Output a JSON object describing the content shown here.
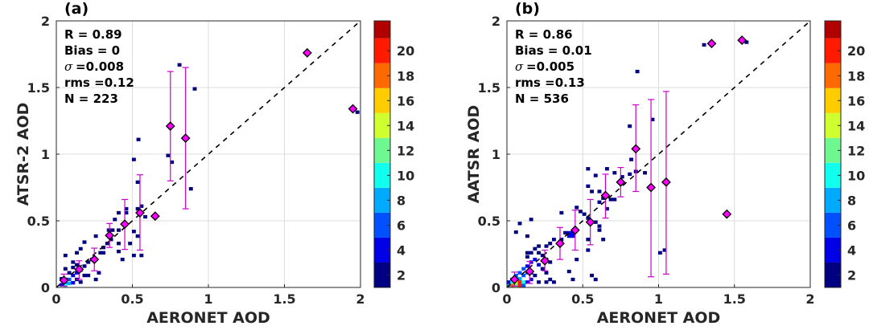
{
  "chart_data": [
    {
      "type": "heatmap",
      "panel_label": "(a)",
      "xlabel": "AERONET AOD",
      "ylabel": "ATSR-2 AOD",
      "xlim": [
        0,
        2
      ],
      "ylim": [
        0,
        2
      ],
      "xticks": [
        "0",
        "0.5",
        "1",
        "1.5",
        "2"
      ],
      "yticks": [
        "0",
        "0.5",
        "1",
        "1.5",
        "2"
      ],
      "grid": true,
      "stats": [
        "R = 0.89",
        "Bias = 0",
        "=0.008",
        "rms =0.12",
        "N = 223"
      ],
      "sigma_symbol": "σ",
      "one_to_one_line": true,
      "cells": [
        [
          0.81,
          1.67,
          1
        ],
        [
          0.91,
          1.49,
          1
        ],
        [
          0.54,
          1.11,
          1
        ],
        [
          0.51,
          0.96,
          1
        ],
        [
          0.735,
          0.99,
          1
        ],
        [
          0.76,
          0.94,
          1
        ],
        [
          0.885,
          0.74,
          1
        ],
        [
          0.535,
          0.79,
          1
        ],
        [
          0.56,
          0.61,
          1
        ],
        [
          0.535,
          0.59,
          1
        ],
        [
          0.46,
          0.59,
          1
        ],
        [
          0.46,
          0.56,
          1
        ],
        [
          0.41,
          0.56,
          1
        ],
        [
          0.385,
          0.51,
          1
        ],
        [
          0.585,
          0.53,
          1
        ],
        [
          0.51,
          0.42,
          1
        ],
        [
          0.535,
          0.385,
          1
        ],
        [
          0.485,
          0.33,
          1
        ],
        [
          0.51,
          0.24,
          1
        ],
        [
          0.56,
          0.24,
          1
        ],
        [
          0.435,
          0.21,
          1
        ],
        [
          0.41,
          0.27,
          1
        ],
        [
          0.41,
          0.33,
          1
        ],
        [
          0.37,
          0.43,
          1
        ],
        [
          0.345,
          0.43,
          1
        ],
        [
          0.41,
          0.43,
          1
        ],
        [
          0.26,
          0.385,
          1
        ],
        [
          0.185,
          0.34,
          1
        ],
        [
          0.16,
          0.29,
          1
        ],
        [
          0.135,
          0.26,
          1
        ],
        [
          0.06,
          0.24,
          1
        ],
        [
          0.29,
          0.26,
          1
        ],
        [
          0.26,
          0.06,
          1
        ],
        [
          0.21,
          0.09,
          1
        ],
        [
          0.28,
          0.11,
          1
        ],
        [
          0.31,
          0.26,
          1
        ],
        [
          0.31,
          0.3,
          1
        ],
        [
          0.335,
          0.33,
          1
        ],
        [
          0.36,
          0.36,
          1
        ],
        [
          0.235,
          0.21,
          2
        ],
        [
          0.21,
          0.19,
          2
        ],
        [
          0.185,
          0.16,
          2
        ],
        [
          0.16,
          0.13,
          3
        ],
        [
          0.135,
          0.11,
          3
        ],
        [
          0.11,
          0.09,
          4
        ],
        [
          0.085,
          0.06,
          5
        ],
        [
          0.06,
          0.04,
          6
        ],
        [
          0.035,
          0.02,
          4
        ],
        [
          0.06,
          0.015,
          9
        ],
        [
          0.085,
          0.03,
          7
        ],
        [
          0.11,
          0.035,
          3
        ],
        [
          0.035,
          0.065,
          2
        ],
        [
          0.085,
          0.11,
          2
        ],
        [
          0.06,
          0.14,
          1
        ],
        [
          0.11,
          0.15,
          1
        ],
        [
          0.135,
          0.06,
          2
        ],
        [
          0.16,
          0.04,
          1
        ],
        [
          0.185,
          0.09,
          1
        ],
        [
          0.11,
          0.19,
          1
        ],
        [
          0.135,
          0.17,
          1
        ],
        [
          1.98,
          1.315,
          1
        ]
      ],
      "binned_means": [
        {
          "x": 0.05,
          "y": 0.054,
          "lo": 0.01,
          "hi": 0.1
        },
        {
          "x": 0.15,
          "y": 0.135,
          "lo": 0.06,
          "hi": 0.2
        },
        {
          "x": 0.25,
          "y": 0.21,
          "lo": 0.125,
          "hi": 0.295
        },
        {
          "x": 0.35,
          "y": 0.39,
          "lo": 0.3,
          "hi": 0.48
        },
        {
          "x": 0.45,
          "y": 0.475,
          "lo": 0.285,
          "hi": 0.66
        },
        {
          "x": 0.55,
          "y": 0.56,
          "lo": 0.28,
          "hi": 0.845
        },
        {
          "x": 0.65,
          "y": 0.535,
          "lo": null,
          "hi": null
        },
        {
          "x": 0.75,
          "y": 1.21,
          "lo": 0.8,
          "hi": 1.62
        },
        {
          "x": 0.85,
          "y": 1.12,
          "lo": 0.59,
          "hi": 1.65
        },
        {
          "x": 1.65,
          "y": 1.76,
          "lo": null,
          "hi": null
        },
        {
          "x": 1.95,
          "y": 1.34,
          "lo": null,
          "hi": null
        }
      ],
      "colorbar": {
        "range": [
          1,
          22.4
        ],
        "ticks": [
          "2",
          "4",
          "6",
          "8",
          "10",
          "12",
          "14",
          "16",
          "18",
          "20"
        ]
      }
    },
    {
      "type": "heatmap",
      "panel_label": "(b)",
      "xlabel": "AERONET AOD",
      "ylabel": "AATSR AOD",
      "xlim": [
        0,
        2
      ],
      "ylim": [
        0,
        2
      ],
      "xticks": [
        "0",
        "0.5",
        "1",
        "1.5",
        "2"
      ],
      "yticks": [
        "0",
        "0.5",
        "1",
        "1.5",
        "2"
      ],
      "grid": true,
      "stats": [
        "R = 0.86",
        "Bias = 0.01",
        "=0.005",
        "rms =0.13",
        "N = 536"
      ],
      "sigma_symbol": "σ",
      "one_to_one_line": true,
      "cells": [
        [
          0.86,
          1.62,
          1
        ],
        [
          0.81,
          1.21,
          1
        ],
        [
          0.96,
          1.26,
          1
        ],
        [
          1.3,
          1.82,
          1
        ],
        [
          1.58,
          1.84,
          1
        ],
        [
          0.82,
          0.96,
          1
        ],
        [
          0.85,
          0.87,
          1
        ],
        [
          0.91,
          0.86,
          1
        ],
        [
          0.81,
          0.85,
          1
        ],
        [
          0.76,
          0.83,
          1
        ],
        [
          0.71,
          0.86,
          1
        ],
        [
          0.66,
          0.89,
          1
        ],
        [
          0.535,
          0.89,
          1
        ],
        [
          0.585,
          0.84,
          1
        ],
        [
          0.535,
          0.76,
          1
        ],
        [
          0.61,
          0.72,
          1
        ],
        [
          0.56,
          0.72,
          1
        ],
        [
          0.635,
          0.67,
          1
        ],
        [
          0.685,
          0.66,
          1
        ],
        [
          0.66,
          0.59,
          1
        ],
        [
          0.71,
          0.66,
          1
        ],
        [
          0.61,
          0.64,
          1
        ],
        [
          0.485,
          0.57,
          1
        ],
        [
          0.46,
          0.6,
          1
        ],
        [
          0.51,
          0.55,
          1
        ],
        [
          0.535,
          0.52,
          1
        ],
        [
          0.585,
          0.49,
          1
        ],
        [
          0.61,
          0.46,
          1
        ],
        [
          0.61,
          0.43,
          1
        ],
        [
          0.635,
          0.36,
          1
        ],
        [
          0.535,
          0.36,
          1
        ],
        [
          0.535,
          0.28,
          1
        ],
        [
          0.46,
          0.21,
          1
        ],
        [
          0.41,
          0.12,
          1
        ],
        [
          0.435,
          0.06,
          1
        ],
        [
          0.56,
          0.09,
          1
        ],
        [
          0.585,
          0.06,
          1
        ],
        [
          1.01,
          0.26,
          1
        ],
        [
          1.04,
          0.28,
          1
        ],
        [
          0.36,
          0.56,
          1
        ],
        [
          0.16,
          0.51,
          1
        ],
        [
          0.085,
          0.48,
          1
        ],
        [
          0.06,
          0.415,
          1
        ],
        [
          0.135,
          0.385,
          1
        ],
        [
          0.41,
          0.41,
          3
        ],
        [
          0.435,
          0.41,
          3
        ],
        [
          0.41,
          0.385,
          3
        ],
        [
          0.435,
          0.385,
          3
        ],
        [
          0.385,
          0.41,
          2
        ],
        [
          0.36,
          0.36,
          2
        ],
        [
          0.31,
          0.36,
          1
        ],
        [
          0.285,
          0.33,
          2
        ],
        [
          0.26,
          0.31,
          2
        ],
        [
          0.21,
          0.31,
          1
        ],
        [
          0.185,
          0.29,
          1
        ],
        [
          0.16,
          0.26,
          1
        ],
        [
          0.135,
          0.26,
          1
        ],
        [
          0.135,
          0.23,
          1
        ],
        [
          0.21,
          0.26,
          2
        ],
        [
          0.235,
          0.24,
          2
        ],
        [
          0.26,
          0.21,
          2
        ],
        [
          0.285,
          0.19,
          1
        ],
        [
          0.185,
          0.21,
          3
        ],
        [
          0.16,
          0.19,
          3
        ],
        [
          0.21,
          0.17,
          3
        ],
        [
          0.235,
          0.14,
          2
        ],
        [
          0.26,
          0.11,
          1
        ],
        [
          0.285,
          0.06,
          1
        ],
        [
          0.31,
          0.04,
          1
        ],
        [
          0.26,
          0.04,
          2
        ],
        [
          0.21,
          0.04,
          2
        ],
        [
          0.135,
          0.16,
          4
        ],
        [
          0.11,
          0.14,
          5
        ],
        [
          0.085,
          0.11,
          5
        ],
        [
          0.06,
          0.09,
          6
        ],
        [
          0.035,
          0.06,
          5
        ],
        [
          0.11,
          0.09,
          6
        ],
        [
          0.135,
          0.11,
          5
        ],
        [
          0.085,
          0.065,
          8
        ],
        [
          0.06,
          0.04,
          14
        ],
        [
          0.085,
          0.04,
          20
        ],
        [
          0.035,
          0.04,
          10
        ],
        [
          0.035,
          0.015,
          17
        ],
        [
          0.06,
          0.015,
          12
        ],
        [
          0.085,
          0.015,
          19
        ],
        [
          0.11,
          0.015,
          6
        ],
        [
          0.11,
          0.04,
          9
        ],
        [
          0.135,
          0.04,
          4
        ],
        [
          0.16,
          0.06,
          3
        ],
        [
          0.16,
          0.11,
          3
        ],
        [
          0.185,
          0.09,
          2
        ],
        [
          0.01,
          0.015,
          8
        ],
        [
          0.01,
          0.04,
          3
        ]
      ],
      "binned_means": [
        {
          "x": 0.05,
          "y": 0.06,
          "lo": 0.01,
          "hi": 0.115
        },
        {
          "x": 0.15,
          "y": 0.12,
          "lo": 0.03,
          "hi": 0.195
        },
        {
          "x": 0.25,
          "y": 0.2,
          "lo": 0.125,
          "hi": 0.28
        },
        {
          "x": 0.35,
          "y": 0.33,
          "lo": 0.21,
          "hi": 0.45
        },
        {
          "x": 0.45,
          "y": 0.43,
          "lo": 0.28,
          "hi": 0.58
        },
        {
          "x": 0.55,
          "y": 0.49,
          "lo": 0.32,
          "hi": 0.66
        },
        {
          "x": 0.65,
          "y": 0.69,
          "lo": 0.52,
          "hi": 0.85
        },
        {
          "x": 0.75,
          "y": 0.79,
          "lo": 0.68,
          "hi": 0.9
        },
        {
          "x": 0.85,
          "y": 1.04,
          "lo": 0.72,
          "hi": 1.37
        },
        {
          "x": 0.95,
          "y": 0.75,
          "lo": 0.08,
          "hi": 1.41
        },
        {
          "x": 1.05,
          "y": 0.79,
          "lo": 0.1,
          "hi": 1.47
        },
        {
          "x": 1.35,
          "y": 1.83,
          "lo": null,
          "hi": null
        },
        {
          "x": 1.55,
          "y": 1.855,
          "lo": null,
          "hi": null
        },
        {
          "x": 1.45,
          "y": 0.55,
          "lo": null,
          "hi": null
        }
      ],
      "colorbar": {
        "range": [
          1,
          22.4
        ],
        "ticks": [
          "2",
          "4",
          "6",
          "8",
          "10",
          "12",
          "14",
          "16",
          "18",
          "20"
        ]
      }
    }
  ],
  "colors": {
    "colormap": [
      "#000080",
      "#0000e6",
      "#0050ff",
      "#00aaff",
      "#10ffee",
      "#70f890",
      "#d0ff30",
      "#ffcc00",
      "#ff6a00",
      "#ff1a00",
      "#b00000"
    ],
    "marker": "#ff00ff",
    "errorbar": "#cc00cc",
    "grid": "#dcdcdc"
  }
}
